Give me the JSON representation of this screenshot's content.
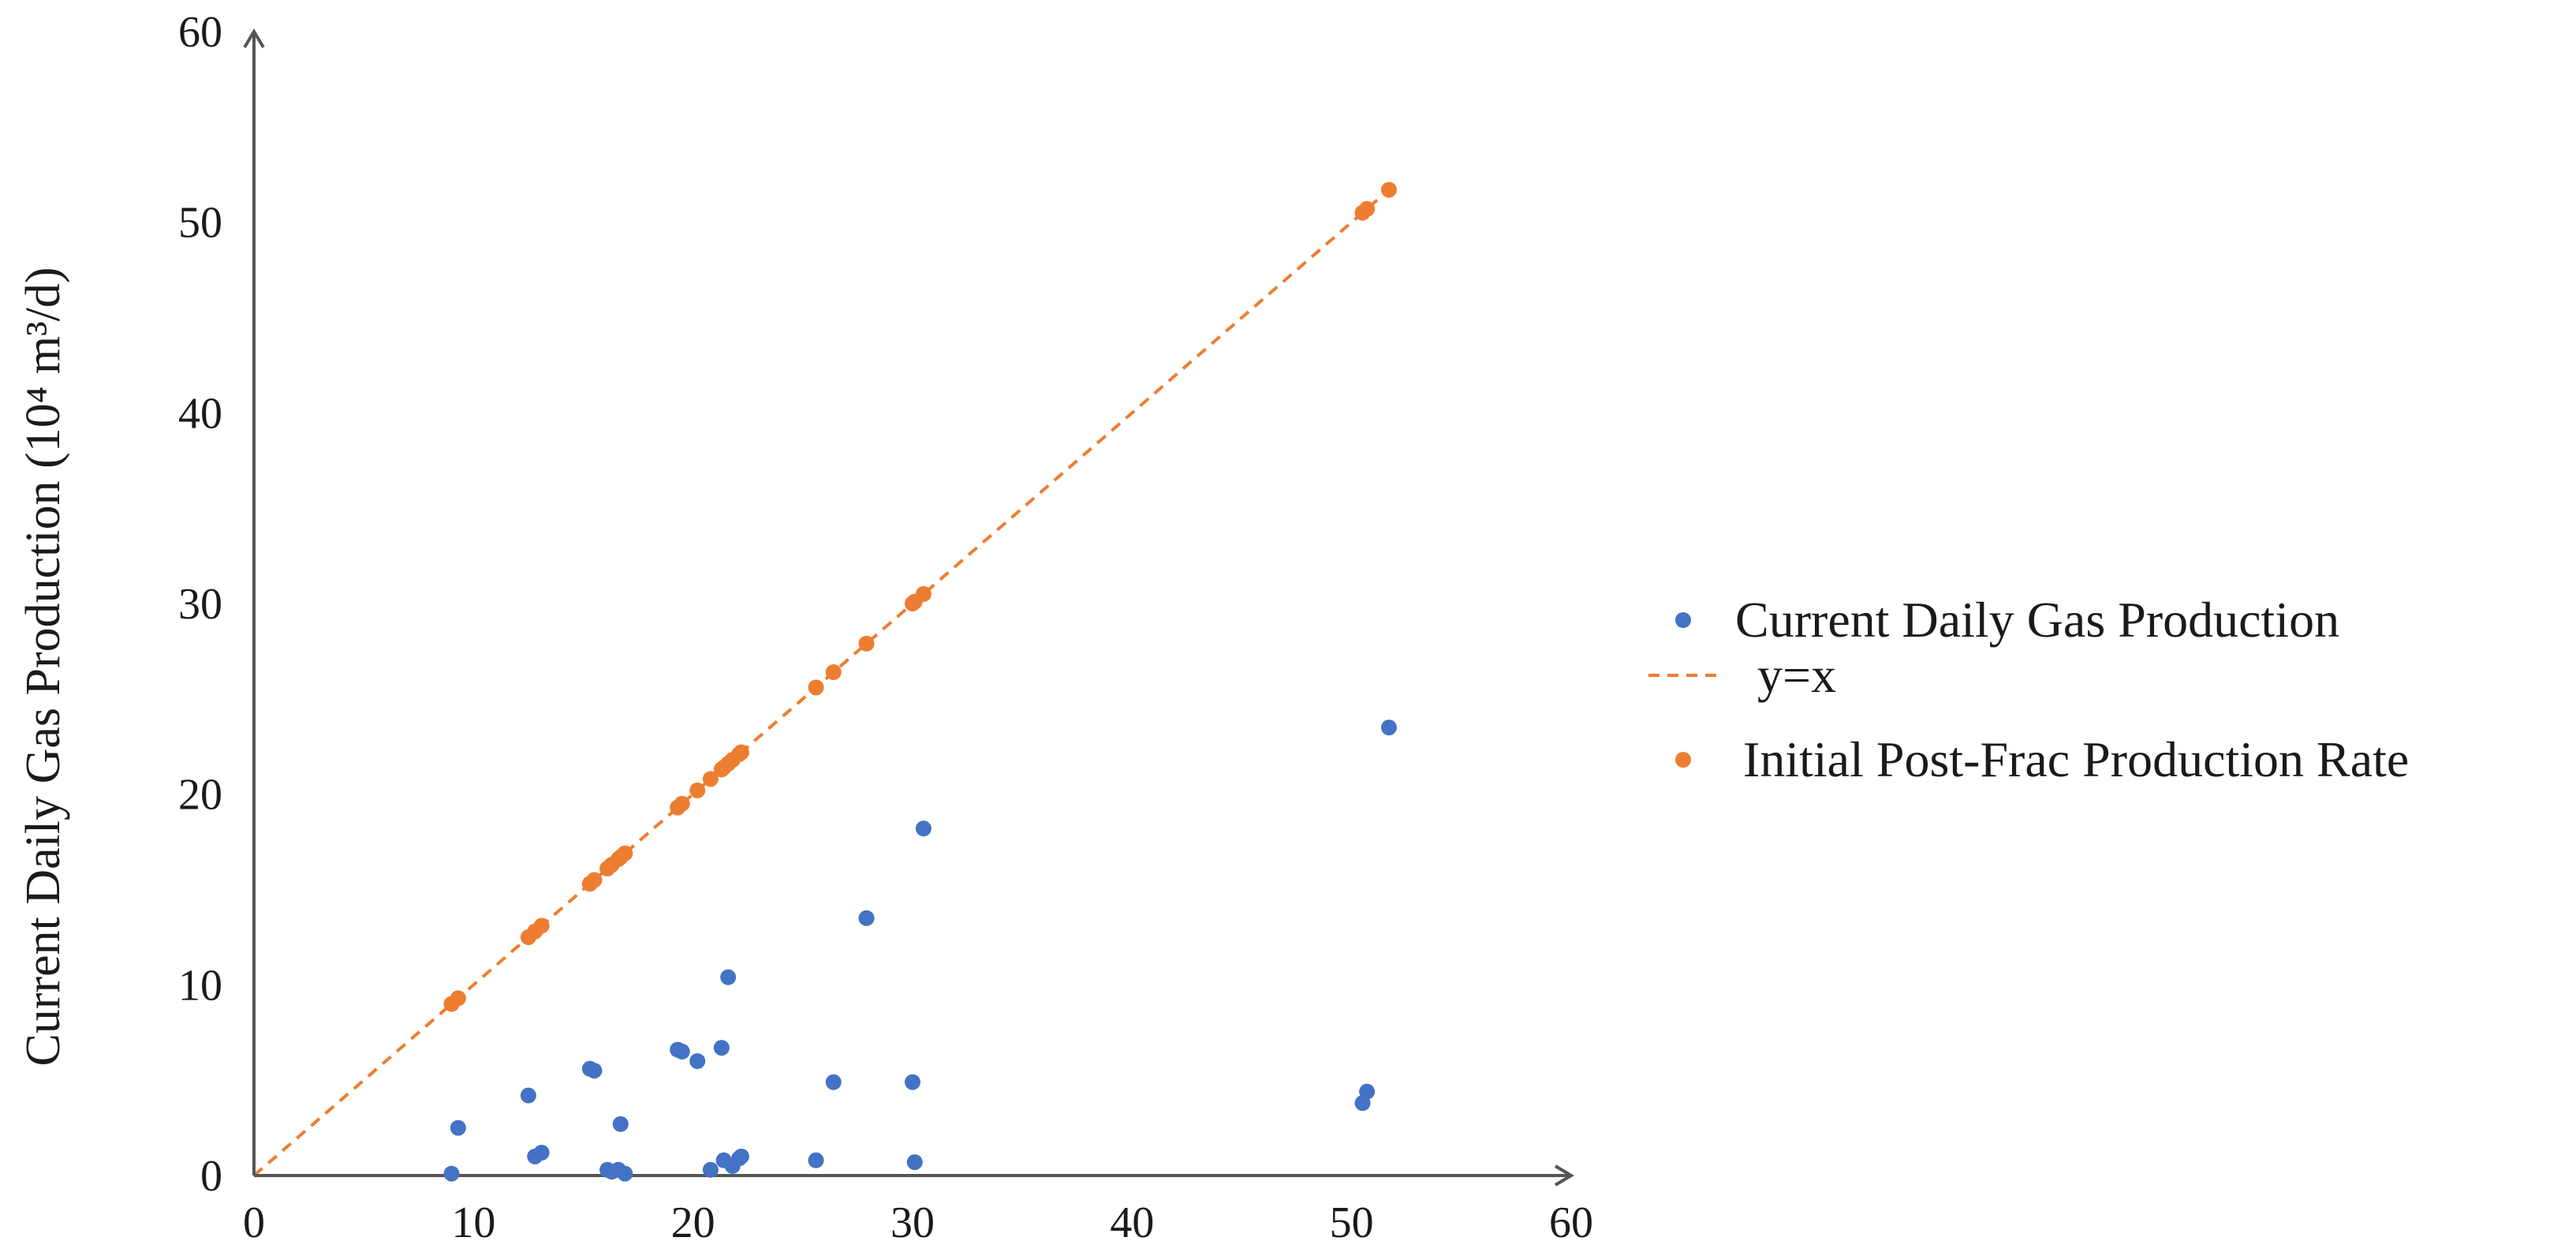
{
  "chart_data": {
    "type": "scatter",
    "title": "",
    "xlabel": "",
    "ylabel": "Current Daily Gas Production (10⁴ m³/d)",
    "xlim": [
      0,
      60
    ],
    "ylim": [
      0,
      60
    ],
    "xticks": [
      "0",
      "10",
      "20",
      "30",
      "40",
      "50",
      "60"
    ],
    "yticks": [
      "0",
      "10",
      "20",
      "30",
      "40",
      "50",
      "60"
    ],
    "grid": false,
    "legend_position": "right",
    "series": [
      {
        "name": "Current Daily Gas Production",
        "kind": "scatter",
        "color": "#4472C4",
        "points": [
          [
            9.0,
            0.1
          ],
          [
            9.3,
            2.5
          ],
          [
            12.5,
            4.2
          ],
          [
            12.8,
            1.0
          ],
          [
            13.1,
            1.2
          ],
          [
            15.3,
            5.6
          ],
          [
            15.5,
            5.5
          ],
          [
            16.1,
            0.3
          ],
          [
            16.3,
            0.2
          ],
          [
            16.6,
            0.3
          ],
          [
            16.7,
            2.7
          ],
          [
            16.9,
            0.1
          ],
          [
            19.3,
            6.6
          ],
          [
            19.5,
            6.5
          ],
          [
            20.2,
            6.0
          ],
          [
            20.8,
            0.3
          ],
          [
            21.3,
            6.7
          ],
          [
            21.4,
            0.8
          ],
          [
            21.6,
            10.4
          ],
          [
            21.8,
            0.5
          ],
          [
            22.1,
            0.9
          ],
          [
            22.2,
            1.0
          ],
          [
            25.6,
            0.8
          ],
          [
            26.4,
            4.9
          ],
          [
            27.9,
            13.5
          ],
          [
            30.0,
            4.9
          ],
          [
            30.1,
            0.7
          ],
          [
            30.5,
            18.2
          ],
          [
            50.5,
            3.8
          ],
          [
            50.7,
            4.4
          ],
          [
            51.7,
            23.5
          ]
        ]
      },
      {
        "name": "y=x",
        "kind": "dashed-line",
        "color": "#ED7D31",
        "points": [
          [
            0,
            0
          ],
          [
            52,
            52
          ]
        ]
      },
      {
        "name": "Initial Post-Frac Production Rate",
        "kind": "scatter",
        "color": "#ED7D31",
        "points": [
          [
            9.0,
            9.0
          ],
          [
            9.3,
            9.3
          ],
          [
            12.5,
            12.5
          ],
          [
            12.8,
            12.8
          ],
          [
            13.1,
            13.1
          ],
          [
            15.3,
            15.3
          ],
          [
            15.5,
            15.5
          ],
          [
            16.1,
            16.1
          ],
          [
            16.3,
            16.3
          ],
          [
            16.6,
            16.6
          ],
          [
            16.7,
            16.7
          ],
          [
            16.9,
            16.9
          ],
          [
            19.3,
            19.3
          ],
          [
            19.5,
            19.5
          ],
          [
            20.2,
            20.2
          ],
          [
            20.8,
            20.8
          ],
          [
            21.3,
            21.3
          ],
          [
            21.4,
            21.4
          ],
          [
            21.6,
            21.6
          ],
          [
            21.8,
            21.8
          ],
          [
            22.1,
            22.1
          ],
          [
            22.2,
            22.2
          ],
          [
            25.6,
            25.6
          ],
          [
            26.4,
            26.4
          ],
          [
            27.9,
            27.9
          ],
          [
            30.0,
            30.0
          ],
          [
            30.1,
            30.1
          ],
          [
            30.5,
            30.5
          ],
          [
            50.5,
            50.5
          ],
          [
            50.7,
            50.7
          ],
          [
            51.7,
            51.7
          ]
        ]
      }
    ]
  }
}
